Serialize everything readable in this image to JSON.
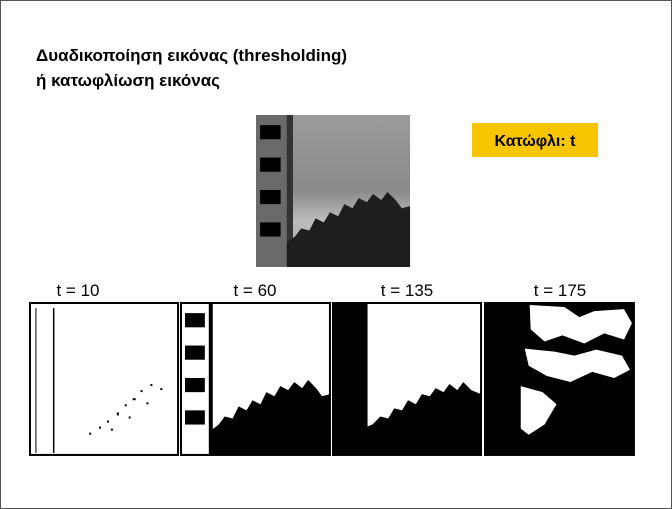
{
  "title_lines": [
    "Δυαδικοποίηση εικόνας (thresholding)",
    "ή κατωφλίωση εικόνας"
  ],
  "threshold_label": "Κατώφλι: t",
  "panels": [
    {
      "label": "t = 10"
    },
    {
      "label": "t = 60"
    },
    {
      "label": "t = 135"
    },
    {
      "label": "t = 175"
    }
  ]
}
